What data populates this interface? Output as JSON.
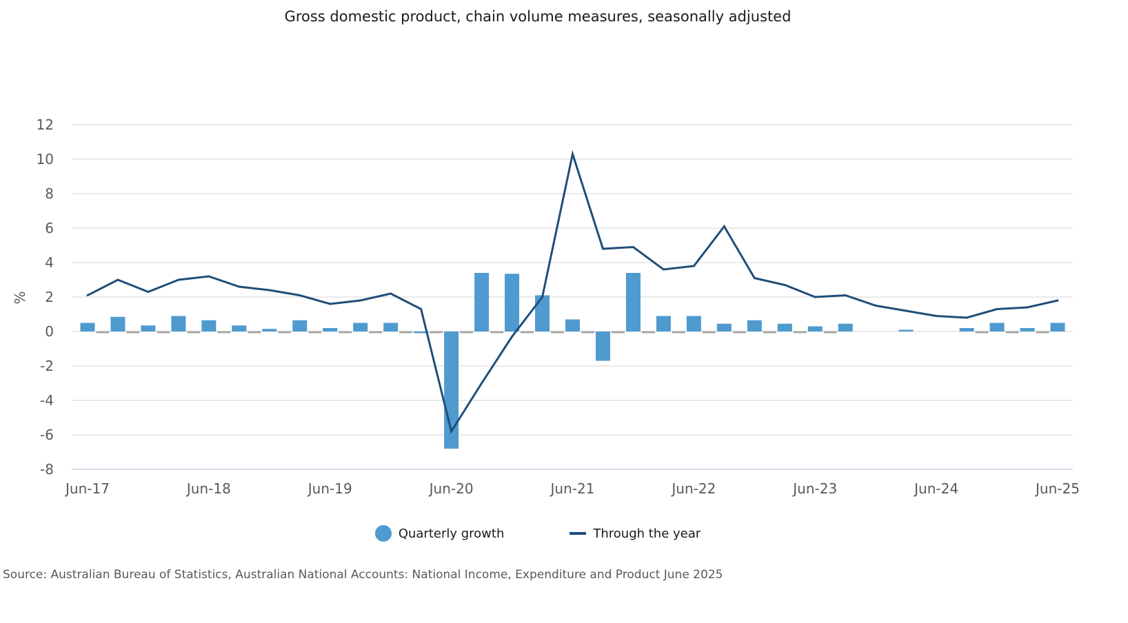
{
  "chart_data": {
    "type": "bar+line",
    "title": "Gross domestic product, chain volume measures, seasonally adjusted",
    "xlabel": "",
    "ylabel": "%",
    "ylim": [
      -8,
      12
    ],
    "yticks": [
      12,
      10,
      8,
      6,
      4,
      2,
      0,
      -2,
      -4,
      -6,
      -8
    ],
    "grid": true,
    "legend_placement": "bottom",
    "x_tick_labels": [
      "Jun-17",
      "Jun-18",
      "Jun-19",
      "Jun-20",
      "Jun-21",
      "Jun-22",
      "Jun-23",
      "Jun-24",
      "Jun-25"
    ],
    "categories": [
      "Jun-17",
      "Sep-17",
      "Dec-17",
      "Mar-18",
      "Jun-18",
      "Sep-18",
      "Dec-18",
      "Mar-19",
      "Jun-19",
      "Sep-19",
      "Dec-19",
      "Mar-20",
      "Jun-20",
      "Sep-20",
      "Dec-20",
      "Mar-21",
      "Jun-21",
      "Sep-21",
      "Dec-21",
      "Mar-22",
      "Jun-22",
      "Sep-22",
      "Dec-22",
      "Mar-23",
      "Jun-23",
      "Sep-23",
      "Dec-23",
      "Mar-24",
      "Jun-24",
      "Sep-24",
      "Dec-24",
      "Mar-25",
      "Jun-25"
    ],
    "series": [
      {
        "name": "Quarterly growth",
        "type": "bar",
        "color": "#4f9acf",
        "values": [
          0.5,
          0.85,
          0.35,
          0.9,
          0.65,
          0.35,
          0.15,
          0.65,
          0.2,
          0.5,
          0.5,
          -0.1,
          -6.8,
          3.4,
          3.35,
          2.1,
          0.7,
          -1.7,
          3.4,
          0.9,
          0.9,
          0.45,
          0.65,
          0.45,
          0.3,
          0.45,
          0.0,
          0.1,
          0.0,
          0.2,
          0.5,
          0.2,
          0.5
        ]
      },
      {
        "name": "Through the year",
        "type": "line",
        "color": "#1f4e79",
        "values": [
          2.1,
          3.0,
          2.3,
          3.0,
          3.2,
          2.6,
          2.4,
          2.1,
          1.6,
          1.8,
          2.2,
          1.3,
          -5.8,
          -3.0,
          -0.3,
          2.0,
          10.3,
          4.8,
          4.9,
          3.6,
          3.8,
          6.1,
          3.1,
          2.7,
          2.0,
          2.1,
          1.5,
          1.2,
          0.9,
          0.8,
          1.3,
          1.4,
          1.8
        ]
      }
    ]
  },
  "legend": {
    "bar_label": "Quarterly growth",
    "line_label": "Through the year"
  },
  "source": "Source: Australian Bureau of Statistics, Australian National Accounts: National Income, Expenditure and Product June 2025"
}
